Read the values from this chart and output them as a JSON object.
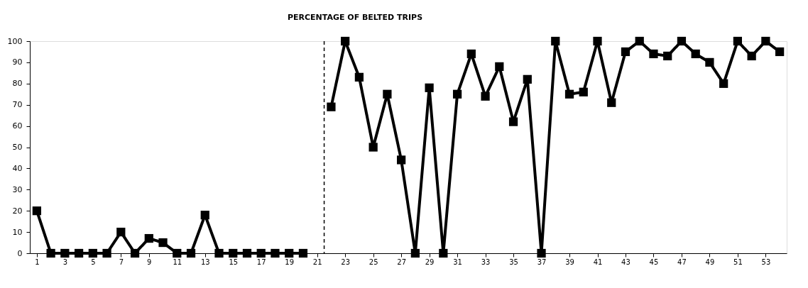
{
  "chart_data": {
    "type": "line",
    "title": "PERCENTAGE OF BELTED TRIPS",
    "x": [
      1,
      2,
      3,
      4,
      5,
      6,
      7,
      8,
      9,
      10,
      11,
      12,
      13,
      14,
      15,
      16,
      17,
      18,
      19,
      20,
      21,
      22,
      23,
      24,
      25,
      26,
      27,
      28,
      29,
      30,
      31,
      32,
      33,
      34,
      35,
      36,
      37,
      38,
      39,
      40,
      41,
      42,
      43,
      44,
      45,
      46,
      47,
      48,
      49,
      50,
      51,
      52,
      53,
      54
    ],
    "values": [
      20,
      0,
      0,
      0,
      0,
      0,
      10,
      0,
      7,
      5,
      0,
      0,
      18,
      0,
      0,
      0,
      0,
      0,
      0,
      0,
      null,
      69,
      100,
      83,
      50,
      75,
      44,
      0,
      78,
      0,
      75,
      94,
      74,
      88,
      62,
      82,
      0,
      100,
      75,
      76,
      100,
      71,
      95,
      100,
      94,
      93,
      100,
      94,
      90,
      80,
      100,
      93,
      100,
      95
    ],
    "color": "#000000",
    "marker": "square",
    "line_style": "solid",
    "xlim": [
      0.5,
      54.5
    ],
    "xticks": [
      1,
      3,
      5,
      7,
      9,
      11,
      13,
      15,
      17,
      19,
      21,
      23,
      25,
      27,
      29,
      31,
      33,
      35,
      37,
      39,
      41,
      43,
      45,
      47,
      49,
      51,
      53
    ],
    "ylim": [
      0,
      100
    ],
    "yticks": [
      0,
      10,
      20,
      30,
      40,
      50,
      60,
      70,
      80,
      90,
      100
    ],
    "ref_lines": [
      {
        "axis": "x",
        "value": 21.5,
        "line_style": "dashed",
        "color": "#000000"
      }
    ]
  }
}
